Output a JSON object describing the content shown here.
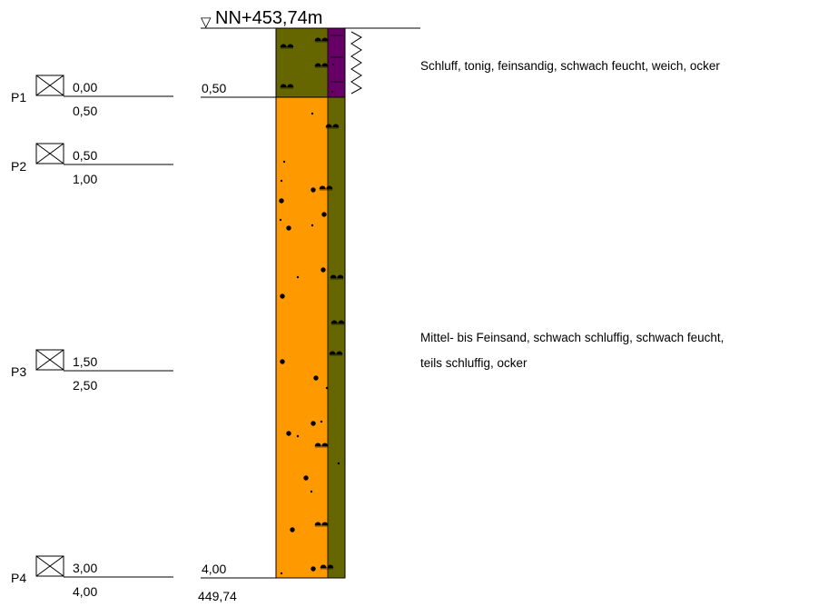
{
  "header": {
    "elevation_label": "NN+453,74m",
    "marker_symbol": "▽"
  },
  "samples": [
    {
      "id": "P1",
      "from": "0,00",
      "to": "0,50"
    },
    {
      "id": "P2",
      "from": "0,50",
      "to": "1,00"
    },
    {
      "id": "P3",
      "from": "1,50",
      "to": "2,50"
    },
    {
      "id": "P4",
      "from": "3,00",
      "to": "4,00"
    }
  ],
  "layers": [
    {
      "top_depth_m": 0.0,
      "bottom_depth_m": 0.5,
      "depth_label": "0,50",
      "description_lines": [
        "Schluff, tonig, feinsandig, schwach feucht, weich, ocker"
      ],
      "main_color": "#666600",
      "side_color": "#660066",
      "consistency": "weich"
    },
    {
      "top_depth_m": 0.5,
      "bottom_depth_m": 4.0,
      "depth_label": "4,00",
      "description_lines": [
        "Mittel- bis Feinsand, schwach schluffig, schwach feucht,",
        "teils schluffig, ocker"
      ],
      "main_color": "#ff9900",
      "side_color": "#666600"
    }
  ],
  "bottom": {
    "elevation": "449,74",
    "depth": "4,00"
  },
  "legend_icons": [
    "sample-box-icon"
  ]
}
